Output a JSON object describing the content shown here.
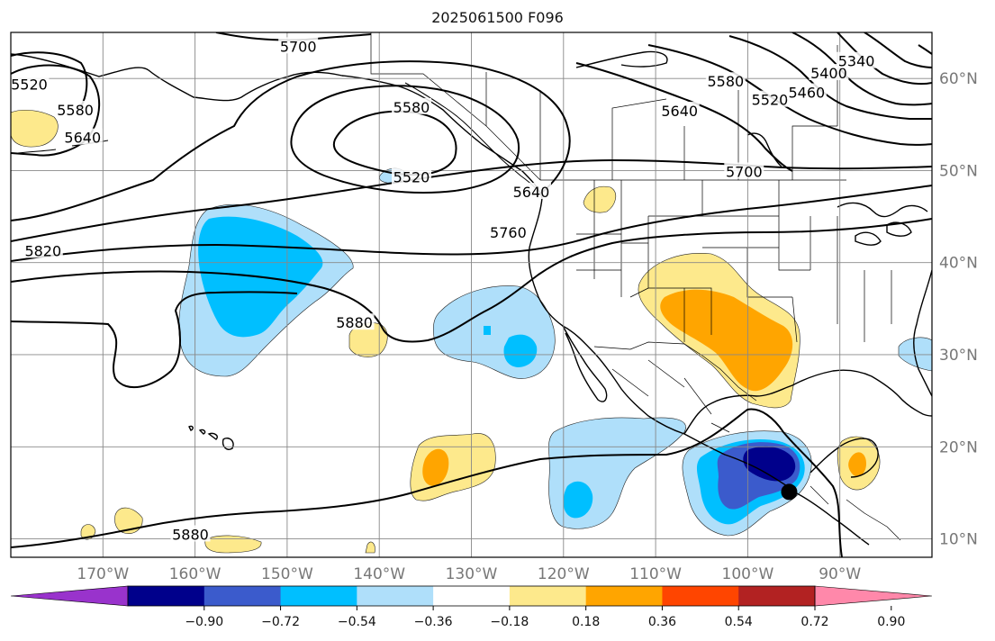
{
  "title": "2025061500 F096",
  "map": {
    "lon_range": [
      -180,
      -80
    ],
    "lat_range": [
      8,
      65
    ],
    "lon_ticks": [
      -170,
      -160,
      -150,
      -140,
      -130,
      -120,
      -110,
      -100,
      -90
    ],
    "lon_labels": [
      "170°W",
      "160°W",
      "150°W",
      "140°W",
      "130°W",
      "120°W",
      "110°W",
      "100°W",
      "90°W"
    ],
    "lat_ticks": [
      10,
      20,
      30,
      40,
      50,
      60
    ],
    "lat_labels": [
      "10°N",
      "20°N",
      "30°N",
      "40°N",
      "50°N",
      "60°N"
    ],
    "grid": true,
    "contour_labels": [
      {
        "text": "5700",
        "lon": -148.8,
        "lat": 63.4
      },
      {
        "text": "5520",
        "lon": -178.0,
        "lat": 59.3
      },
      {
        "text": "5580",
        "lon": -173.0,
        "lat": 56.5
      },
      {
        "text": "5640",
        "lon": -172.2,
        "lat": 53.5
      },
      {
        "text": "5580",
        "lon": -136.5,
        "lat": 56.8
      },
      {
        "text": "5520",
        "lon": -136.5,
        "lat": 49.2
      },
      {
        "text": "5640",
        "lon": -123.5,
        "lat": 47.6
      },
      {
        "text": "5760",
        "lon": -126.0,
        "lat": 43.2
      },
      {
        "text": "5820",
        "lon": -176.5,
        "lat": 41.2
      },
      {
        "text": "5880",
        "lon": -142.7,
        "lat": 33.4
      },
      {
        "text": "5880",
        "lon": -160.5,
        "lat": 10.4
      },
      {
        "text": "5640",
        "lon": -107.4,
        "lat": 56.4
      },
      {
        "text": "5580",
        "lon": -102.4,
        "lat": 59.6
      },
      {
        "text": "5520",
        "lon": -97.6,
        "lat": 57.6
      },
      {
        "text": "5460",
        "lon": -93.6,
        "lat": 58.4
      },
      {
        "text": "5400",
        "lon": -91.2,
        "lat": 60.5
      },
      {
        "text": "5340",
        "lon": -88.2,
        "lat": 61.8
      },
      {
        "text": "5700",
        "lon": -100.4,
        "lat": 49.8
      }
    ],
    "marker": {
      "name": "black-dot",
      "lon": -95.5,
      "lat": 15.1,
      "color": "#000000"
    }
  },
  "colorbar": {
    "colors": [
      "#9933cc",
      "#00008b",
      "#3b5bcc",
      "#00bfff",
      "#afdffa",
      "#ffffff",
      "#fde98c",
      "#ffa500",
      "#ff4500",
      "#b22222",
      "#ff88aa"
    ],
    "levels": [
      -0.9,
      -0.72,
      -0.54,
      -0.36,
      -0.18,
      0.18,
      0.36,
      0.54,
      0.72,
      0.9
    ],
    "labels": [
      "−0.90",
      "−0.72",
      "−0.54",
      "−0.36",
      "−0.18",
      "0.18",
      "0.36",
      "0.54",
      "0.72",
      "0.90"
    ]
  }
}
